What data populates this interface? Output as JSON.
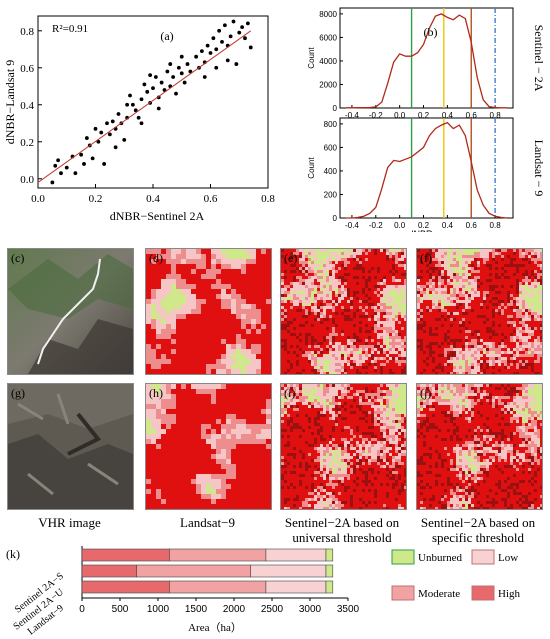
{
  "figure": {
    "captions": {
      "vhr": "VHR image",
      "landsat": "Landsat−9",
      "universal": "Sentinel−2A based on universal threshold",
      "specific": "Sentinel−2A based on specific threshold"
    },
    "map_labels": [
      "(c)",
      "(d)",
      "(e)",
      "(f)",
      "(g)",
      "(h)",
      "(i)",
      "(j)"
    ],
    "class_colors": {
      "unburned": "#cfe98a",
      "low": "#f6c6c6",
      "moderate": "#ee8d8d",
      "high": "#e85a5a",
      "highest": "#e01010",
      "dark": "#9b1010"
    }
  },
  "chart_data": [
    {
      "type": "scatter",
      "panel": "(a)",
      "annotation": "R²=0.91",
      "xlabel": "dNBR−Sentinel 2A",
      "ylabel": "dNBR−Landsat 9",
      "xlim": [
        0.0,
        0.8
      ],
      "ylim": [
        -0.05,
        0.88
      ],
      "xticks": [
        "0.0",
        "0.2",
        "0.4",
        "0.6",
        "0.8"
      ],
      "yticks": [
        "0.0",
        "0.2",
        "0.4",
        "0.6",
        "0.8"
      ],
      "fit_line": {
        "x": [
          0.0,
          0.74
        ],
        "y": [
          -0.02,
          0.8
        ]
      },
      "points": [
        [
          0.05,
          -0.02
        ],
        [
          0.06,
          0.07
        ],
        [
          0.08,
          0.03
        ],
        [
          0.07,
          0.1
        ],
        [
          0.1,
          0.06
        ],
        [
          0.12,
          0.12
        ],
        [
          0.13,
          0.03
        ],
        [
          0.15,
          0.13
        ],
        [
          0.16,
          0.08
        ],
        [
          0.17,
          0.22
        ],
        [
          0.18,
          0.18
        ],
        [
          0.19,
          0.11
        ],
        [
          0.2,
          0.27
        ],
        [
          0.21,
          0.2
        ],
        [
          0.22,
          0.25
        ],
        [
          0.23,
          0.08
        ],
        [
          0.24,
          0.3
        ],
        [
          0.25,
          0.24
        ],
        [
          0.26,
          0.31
        ],
        [
          0.27,
          0.27
        ],
        [
          0.28,
          0.35
        ],
        [
          0.29,
          0.3
        ],
        [
          0.3,
          0.21
        ],
        [
          0.31,
          0.33
        ],
        [
          0.32,
          0.45
        ],
        [
          0.33,
          0.4
        ],
        [
          0.34,
          0.37
        ],
        [
          0.35,
          0.33
        ],
        [
          0.36,
          0.43
        ],
        [
          0.37,
          0.51
        ],
        [
          0.38,
          0.47
        ],
        [
          0.39,
          0.41
        ],
        [
          0.4,
          0.49
        ],
        [
          0.41,
          0.55
        ],
        [
          0.42,
          0.44
        ],
        [
          0.43,
          0.52
        ],
        [
          0.44,
          0.48
        ],
        [
          0.45,
          0.58
        ],
        [
          0.46,
          0.5
        ],
        [
          0.47,
          0.55
        ],
        [
          0.48,
          0.46
        ],
        [
          0.49,
          0.6
        ],
        [
          0.5,
          0.57
        ],
        [
          0.51,
          0.52
        ],
        [
          0.52,
          0.62
        ],
        [
          0.53,
          0.58
        ],
        [
          0.55,
          0.66
        ],
        [
          0.56,
          0.6
        ],
        [
          0.57,
          0.69
        ],
        [
          0.58,
          0.63
        ],
        [
          0.59,
          0.72
        ],
        [
          0.6,
          0.68
        ],
        [
          0.61,
          0.76
        ],
        [
          0.62,
          0.7
        ],
        [
          0.63,
          0.8
        ],
        [
          0.64,
          0.74
        ],
        [
          0.65,
          0.83
        ],
        [
          0.66,
          0.72
        ],
        [
          0.67,
          0.77
        ],
        [
          0.68,
          0.85
        ],
        [
          0.69,
          0.62
        ],
        [
          0.7,
          0.79
        ],
        [
          0.71,
          0.82
        ],
        [
          0.72,
          0.76
        ],
        [
          0.73,
          0.84
        ],
        [
          0.74,
          0.71
        ],
        [
          0.36,
          0.3
        ],
        [
          0.42,
          0.38
        ],
        [
          0.5,
          0.66
        ],
        [
          0.58,
          0.55
        ],
        [
          0.62,
          0.6
        ],
        [
          0.66,
          0.64
        ],
        [
          0.27,
          0.17
        ],
        [
          0.31,
          0.4
        ],
        [
          0.39,
          0.56
        ],
        [
          0.46,
          0.62
        ]
      ]
    },
    {
      "type": "line",
      "panel": "(b)",
      "subplots": [
        {
          "side_label": "Sentinel − 2A",
          "ylabel": "Count",
          "ylim": [
            0,
            8500
          ],
          "yticks": [
            "0",
            "2000",
            "4000",
            "6000",
            "8000"
          ],
          "xlim": [
            -0.5,
            0.95
          ],
          "x": [
            -0.45,
            -0.4,
            -0.35,
            -0.3,
            -0.25,
            -0.2,
            -0.15,
            -0.1,
            -0.05,
            0.0,
            0.05,
            0.1,
            0.15,
            0.2,
            0.25,
            0.3,
            0.35,
            0.4,
            0.45,
            0.5,
            0.55,
            0.6,
            0.65,
            0.7,
            0.75,
            0.8,
            0.85,
            0.9
          ],
          "y": [
            20,
            20,
            25,
            30,
            40,
            90,
            500,
            2100,
            3900,
            4600,
            4400,
            4400,
            4700,
            5400,
            6800,
            7800,
            8000,
            7700,
            7500,
            7900,
            7600,
            5600,
            2600,
            700,
            120,
            40,
            20,
            15
          ]
        },
        {
          "side_label": "Landsat − 9",
          "ylabel": "Count",
          "ylim": [
            0,
            850
          ],
          "yticks": [
            "0",
            "200",
            "400",
            "600",
            "800"
          ],
          "xlabel": "dNBR",
          "xlim": [
            -0.5,
            0.95
          ],
          "xticks": [
            "-0.4",
            "-0.2",
            "0.0",
            "0.2",
            "0.4",
            "0.6",
            "0.8"
          ],
          "x": [
            -0.45,
            -0.4,
            -0.35,
            -0.3,
            -0.25,
            -0.2,
            -0.15,
            -0.1,
            -0.05,
            0.0,
            0.05,
            0.1,
            0.15,
            0.2,
            0.25,
            0.3,
            0.35,
            0.4,
            0.45,
            0.5,
            0.55,
            0.6,
            0.65,
            0.7,
            0.75,
            0.8,
            0.85,
            0.9
          ],
          "y": [
            0,
            0,
            5,
            15,
            40,
            90,
            250,
            430,
            490,
            480,
            500,
            520,
            560,
            600,
            700,
            760,
            790,
            810,
            760,
            790,
            700,
            480,
            240,
            110,
            40,
            15,
            5,
            0
          ]
        }
      ],
      "thresholds": [
        {
          "x": 0.1,
          "color": "#2e9e4a",
          "style": "solid"
        },
        {
          "x": 0.37,
          "color": "#f2c300",
          "style": "solid"
        },
        {
          "x": 0.6,
          "color": "#b5521e",
          "style": "solid"
        },
        {
          "x": 0.8,
          "color": "#3f7fd0",
          "style": "dashdot"
        }
      ]
    },
    {
      "type": "bar",
      "orientation": "horizontal",
      "stacked": true,
      "panel": "(k)",
      "categories": [
        "Sentinel 2A−S",
        "Sentinel 2A−U",
        "Landsat−9"
      ],
      "xlabel": "Area（ha）",
      "xlim": [
        0,
        3500
      ],
      "xticks": [
        "0",
        "500",
        "1000",
        "1500",
        "2000",
        "2500",
        "3000",
        "3500"
      ],
      "series": [
        {
          "name": "High",
          "color": "#e8696c",
          "values": [
            1150,
            720,
            1150
          ]
        },
        {
          "name": "Moderate",
          "color": "#f1a2a2",
          "values": [
            1270,
            1500,
            1270
          ]
        },
        {
          "name": "Low",
          "color": "#f8d2d2",
          "values": [
            790,
            990,
            790
          ]
        },
        {
          "name": "Unburned",
          "color": "#cfe98a",
          "values": [
            90,
            90,
            90
          ]
        }
      ],
      "legend": [
        "Unburned",
        "Low",
        "Moderate",
        "High"
      ]
    }
  ]
}
